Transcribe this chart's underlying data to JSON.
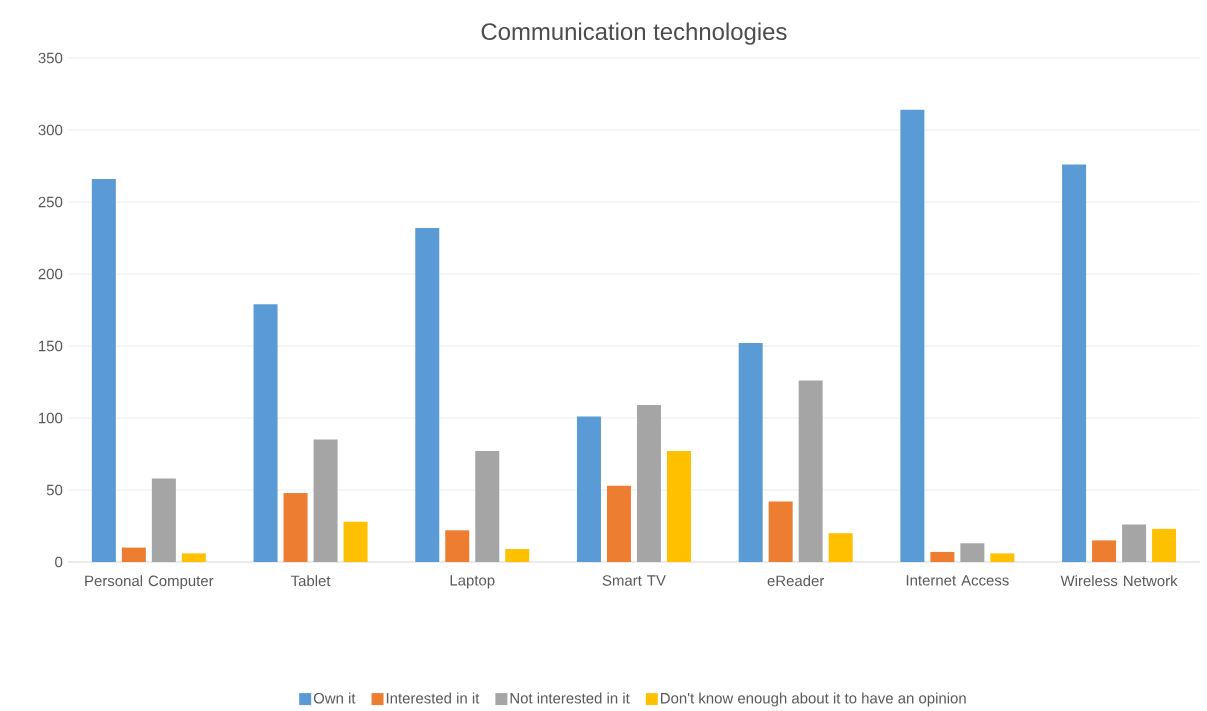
{
  "chart_data": {
    "type": "bar",
    "title": "Communication technologies",
    "categories": [
      "Personal Computer",
      "Tablet",
      "Laptop",
      "Smart TV",
      "eReader",
      "Internet Access",
      "Wireless Network"
    ],
    "series": [
      {
        "name": "Own it",
        "color": "#5b9bd5",
        "values": [
          266,
          179,
          232,
          101,
          152,
          314,
          276
        ]
      },
      {
        "name": "Interested in it",
        "color": "#ed7d31",
        "values": [
          10,
          48,
          22,
          53,
          42,
          7,
          15
        ]
      },
      {
        "name": "Not interested in it",
        "color": "#a5a5a5",
        "values": [
          58,
          85,
          77,
          109,
          126,
          13,
          26
        ]
      },
      {
        "name": "Don't know enough about it to have an opinion",
        "color": "#ffc000",
        "values": [
          6,
          28,
          9,
          77,
          20,
          6,
          23
        ]
      }
    ],
    "ylim": [
      0,
      350
    ],
    "yticks": [
      0,
      50,
      100,
      150,
      200,
      250,
      300,
      350
    ],
    "grid": "y",
    "legend": "bottom"
  }
}
